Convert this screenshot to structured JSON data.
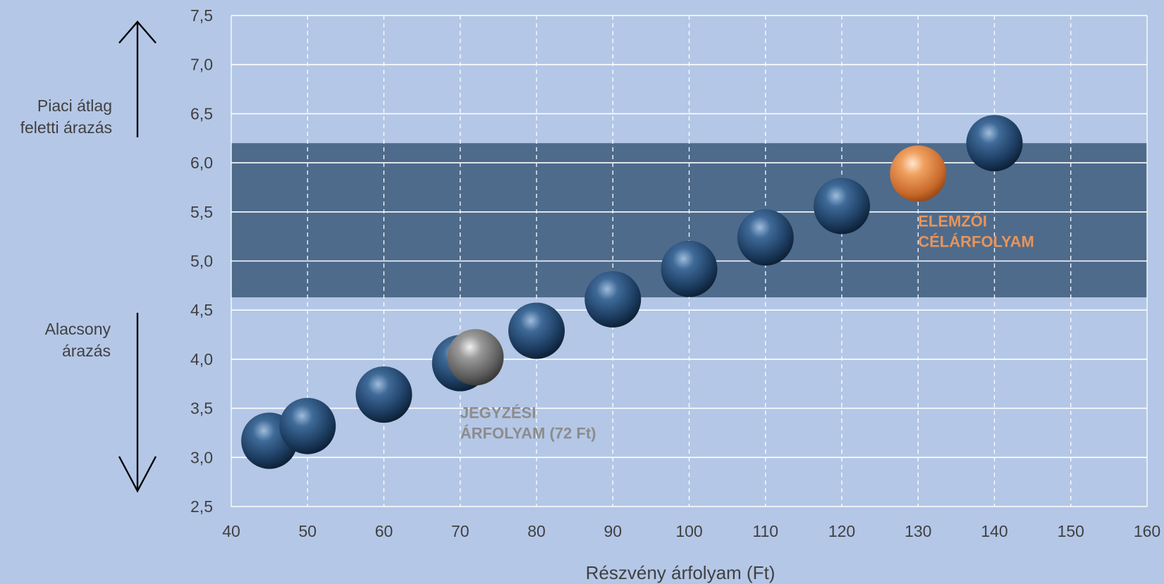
{
  "side_labels": {
    "upper": [
      "Piaci átlag",
      "feletti árazás"
    ],
    "lower": [
      "Alacsony",
      "árazás"
    ]
  },
  "chart_data": {
    "type": "scatter",
    "title": "",
    "xlabel": "Részvény árfolyam (Ft)",
    "ylabel": "",
    "xlim": [
      40,
      160
    ],
    "ylim": [
      2.5,
      7.5
    ],
    "x_ticks": [
      "40",
      "50",
      "60",
      "70",
      "80",
      "90",
      "100",
      "110",
      "120",
      "130",
      "140",
      "150",
      "160"
    ],
    "y_ticks": [
      "2,5",
      "3,0",
      "3,5",
      "4,0",
      "4,5",
      "5,0",
      "5,5",
      "6,0",
      "6,5",
      "7,0",
      "7,5"
    ],
    "x_tick_values": [
      40,
      50,
      60,
      70,
      80,
      90,
      100,
      110,
      120,
      130,
      140,
      150,
      160
    ],
    "y_tick_values": [
      2.5,
      3.0,
      3.5,
      4.0,
      4.5,
      5.0,
      5.5,
      6.0,
      6.5,
      7.0,
      7.5
    ],
    "grid": true,
    "band": {
      "y_from": 4.63,
      "y_to": 6.2,
      "color": "#4e6b8c"
    },
    "series": [
      {
        "color": "#1f4e79",
        "points": [
          {
            "x": 45,
            "y": 3.17
          },
          {
            "x": 50,
            "y": 3.32
          },
          {
            "x": 60,
            "y": 3.64
          },
          {
            "x": 70,
            "y": 3.96
          },
          {
            "x": 80,
            "y": 4.29
          },
          {
            "x": 90,
            "y": 4.61
          },
          {
            "x": 100,
            "y": 4.92
          },
          {
            "x": 110,
            "y": 5.24
          },
          {
            "x": 120,
            "y": 5.56
          },
          {
            "x": 140,
            "y": 6.2
          }
        ]
      },
      {
        "color": "#7f7f7f",
        "points": [
          {
            "x": 72,
            "y": 4.02
          }
        ]
      },
      {
        "color": "#ed8a3c",
        "points": [
          {
            "x": 130,
            "y": 5.89
          }
        ]
      }
    ],
    "annotations": [
      {
        "lines": [
          "JEGYZÉSI",
          "ÁRFOLYAM (72 Ft)"
        ],
        "color": "#8c8c8c",
        "x": 70,
        "y": 3.4
      },
      {
        "lines": [
          "ELEMZŐI",
          "CÉLÁRFOLYAM"
        ],
        "color": "#e8945a",
        "x": 130,
        "y": 5.35
      }
    ]
  }
}
